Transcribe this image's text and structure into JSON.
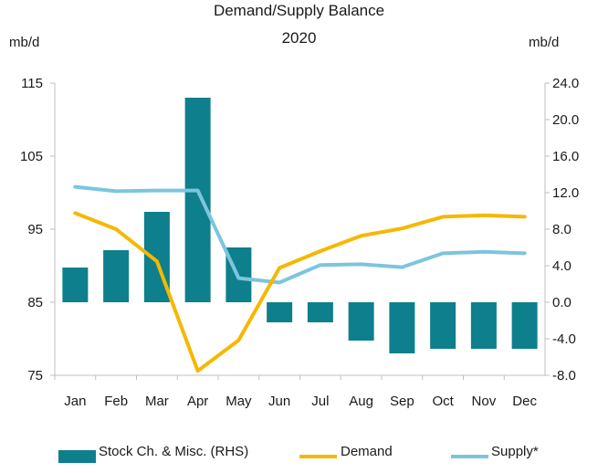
{
  "chart_data": {
    "type": "bar+line",
    "title": "Demand/Supply Balance",
    "subtitle": "2020",
    "left_axis": {
      "label": "mb/d",
      "min": 75,
      "max": 115,
      "ticks": [
        "115",
        "105",
        "95",
        "85",
        "75"
      ],
      "tick_values": [
        115,
        105,
        95,
        85,
        75
      ]
    },
    "right_axis": {
      "label": "mb/d",
      "min": -8,
      "max": 24,
      "ticks": [
        "24.0",
        "20.0",
        "16.0",
        "12.0",
        "8.0",
        "4.0",
        "0.0",
        "-4.0",
        "-8.0"
      ],
      "tick_values": [
        24,
        20,
        16,
        12,
        8,
        4,
        0,
        -4,
        -8
      ]
    },
    "categories": [
      "Jan",
      "Feb",
      "Mar",
      "Apr",
      "May",
      "Jun",
      "Jul",
      "Aug",
      "Sep",
      "Oct",
      "Nov",
      "Dec"
    ],
    "series": [
      {
        "name": "Stock Ch. & Misc. (RHS)",
        "type": "bar",
        "axis": "right",
        "color": "#0e7f8c",
        "values": [
          3.8,
          5.7,
          9.9,
          22.4,
          6.0,
          -2.2,
          -2.2,
          -4.2,
          -5.6,
          -5.1,
          -5.1,
          -5.1
        ]
      },
      {
        "name": "Demand",
        "type": "line",
        "axis": "left",
        "color": "#f5b800",
        "values": [
          97.2,
          95.0,
          90.6,
          75.6,
          79.8,
          89.7,
          92.0,
          94.1,
          95.1,
          96.7,
          96.9,
          96.7
        ]
      },
      {
        "name": "Supply*",
        "type": "line",
        "axis": "left",
        "color": "#7cc5de",
        "values": [
          100.8,
          100.2,
          100.3,
          100.3,
          88.3,
          87.7,
          90.1,
          90.2,
          89.8,
          91.7,
          91.9,
          91.7
        ]
      }
    ],
    "legend": {
      "position": "bottom"
    },
    "grid": false
  }
}
